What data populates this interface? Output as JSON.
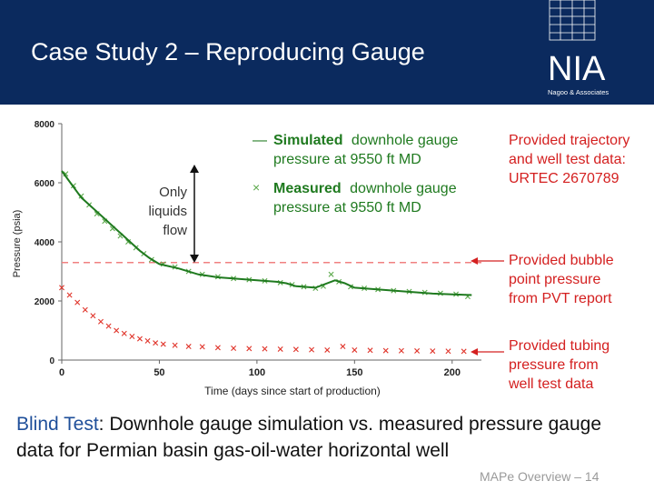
{
  "slide": {
    "title": "Case Study 2 – Reproducing Gauge",
    "caption_highlight": "Blind Test",
    "caption_rest": ": Downhole gauge simulation vs. measured pressure gauge data for Permian basin gas-oil-water horizontal well",
    "footer": "MAPe Overview – 14",
    "logo": {
      "letters": "NIA",
      "subtitle": "Nagoo & Associates"
    }
  },
  "colors": {
    "header_bg": "#0b2a5e",
    "simulated": "#1f7a1f",
    "measured": "#5aa84a",
    "tubing": "#e0342a",
    "bubble": "#f08080",
    "annotation_red": "#d42020",
    "caption_blue": "#1f4f9a"
  },
  "chart_data": {
    "type": "scatter",
    "xlabel": "Time (days since start of production)",
    "ylabel": "Pressure (psia)",
    "xlim": [
      0,
      215
    ],
    "ylim": [
      0,
      8000
    ],
    "x_ticks": [
      "0",
      "50",
      "100",
      "150",
      "200"
    ],
    "y_ticks": [
      "0",
      "2000",
      "4000",
      "6000",
      "8000"
    ],
    "legend": {
      "simulated_bold": "Simulated",
      "simulated_rest": "downhole gauge",
      "simulated_line2": "pressure at 9550 ft MD",
      "measured_bold": "Measured",
      "measured_rest": "downhole gauge",
      "measured_line2": "pressure at 9550 ft MD",
      "line_symbol": "—",
      "cross_symbol": "×"
    },
    "inner_annotation": [
      "Only",
      "liquids",
      "flow"
    ],
    "side_annotations": [
      {
        "lines": [
          "Provided trajectory",
          "and well test data:",
          "URTEC 2670789"
        ],
        "y": 6500
      },
      {
        "lines": [
          "Provided bubble",
          "point pressure",
          "from PVT report"
        ],
        "y": 3300,
        "arrow": true
      },
      {
        "lines": [
          "Provided tubing",
          "pressure from",
          "well test data"
        ],
        "y": 300,
        "arrow": true
      }
    ],
    "bubble_point_pressure": 3300,
    "series": [
      {
        "name": "Simulated downhole gauge pressure at 9550 ft MD",
        "style": "line",
        "points": [
          [
            0,
            6400
          ],
          [
            5,
            5950
          ],
          [
            10,
            5500
          ],
          [
            15,
            5200
          ],
          [
            20,
            4900
          ],
          [
            25,
            4600
          ],
          [
            30,
            4300
          ],
          [
            35,
            4000
          ],
          [
            40,
            3700
          ],
          [
            45,
            3450
          ],
          [
            50,
            3250
          ],
          [
            60,
            3100
          ],
          [
            70,
            2900
          ],
          [
            80,
            2800
          ],
          [
            90,
            2750
          ],
          [
            100,
            2700
          ],
          [
            110,
            2650
          ],
          [
            115,
            2600
          ],
          [
            120,
            2500
          ],
          [
            130,
            2450
          ],
          [
            140,
            2700
          ],
          [
            145,
            2600
          ],
          [
            150,
            2450
          ],
          [
            160,
            2400
          ],
          [
            170,
            2350
          ],
          [
            180,
            2300
          ],
          [
            190,
            2250
          ],
          [
            200,
            2220
          ],
          [
            210,
            2200
          ]
        ]
      },
      {
        "name": "Measured downhole gauge pressure at 9550 ft MD",
        "style": "cross",
        "points": [
          [
            2,
            6300
          ],
          [
            6,
            5900
          ],
          [
            10,
            5550
          ],
          [
            14,
            5250
          ],
          [
            18,
            4950
          ],
          [
            22,
            4700
          ],
          [
            26,
            4450
          ],
          [
            30,
            4200
          ],
          [
            34,
            4000
          ],
          [
            38,
            3800
          ],
          [
            42,
            3600
          ],
          [
            46,
            3400
          ],
          [
            52,
            3250
          ],
          [
            58,
            3150
          ],
          [
            65,
            3000
          ],
          [
            72,
            2900
          ],
          [
            80,
            2820
          ],
          [
            88,
            2760
          ],
          [
            96,
            2720
          ],
          [
            104,
            2680
          ],
          [
            112,
            2620
          ],
          [
            118,
            2550
          ],
          [
            124,
            2480
          ],
          [
            130,
            2430
          ],
          [
            134,
            2500
          ],
          [
            138,
            2900
          ],
          [
            142,
            2650
          ],
          [
            148,
            2480
          ],
          [
            155,
            2430
          ],
          [
            162,
            2390
          ],
          [
            170,
            2350
          ],
          [
            178,
            2320
          ],
          [
            186,
            2290
          ],
          [
            194,
            2260
          ],
          [
            202,
            2230
          ],
          [
            208,
            2150
          ]
        ]
      },
      {
        "name": "Provided tubing pressure from well test data",
        "style": "cross",
        "points": [
          [
            0,
            2450
          ],
          [
            4,
            2200
          ],
          [
            8,
            1950
          ],
          [
            12,
            1700
          ],
          [
            16,
            1500
          ],
          [
            20,
            1300
          ],
          [
            24,
            1150
          ],
          [
            28,
            1000
          ],
          [
            32,
            900
          ],
          [
            36,
            800
          ],
          [
            40,
            720
          ],
          [
            44,
            650
          ],
          [
            48,
            580
          ],
          [
            52,
            540
          ],
          [
            58,
            500
          ],
          [
            65,
            460
          ],
          [
            72,
            450
          ],
          [
            80,
            420
          ],
          [
            88,
            400
          ],
          [
            96,
            390
          ],
          [
            104,
            380
          ],
          [
            112,
            370
          ],
          [
            120,
            360
          ],
          [
            128,
            350
          ],
          [
            136,
            340
          ],
          [
            144,
            460
          ],
          [
            150,
            340
          ],
          [
            158,
            330
          ],
          [
            166,
            320
          ],
          [
            174,
            315
          ],
          [
            182,
            310
          ],
          [
            190,
            305
          ],
          [
            198,
            300
          ],
          [
            206,
            295
          ]
        ]
      }
    ]
  }
}
